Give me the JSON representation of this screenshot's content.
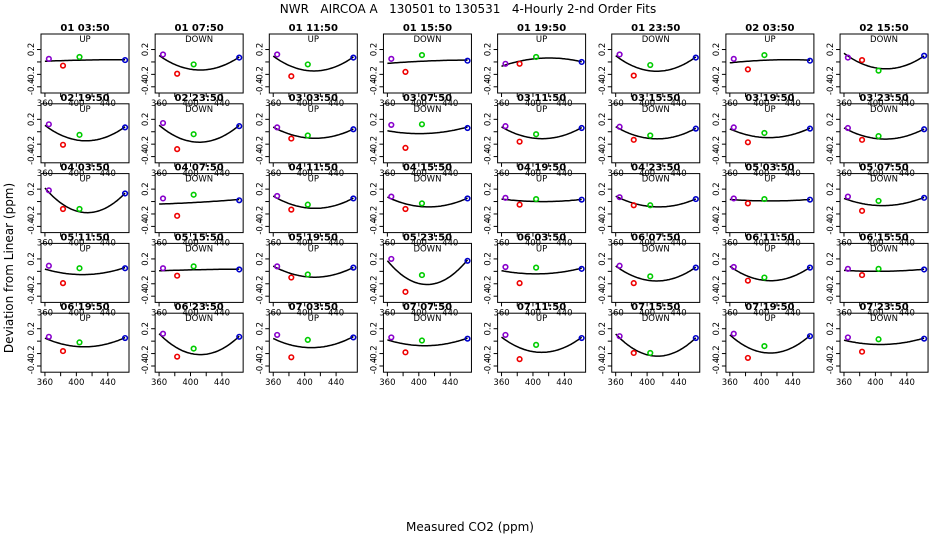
{
  "chart_data": {
    "type": "scatter",
    "title": "NWR   AIRCOA A   130501 to 130531   4-Hourly 2-nd Order Fits",
    "xlabel": "Measured CO2 (ppm)",
    "ylabel": "Deviation from Linear (ppm)",
    "xlim": [
      355,
      467
    ],
    "ylim": [
      -0.5,
      0.45
    ],
    "xticks": [
      "360",
      "400",
      "440"
    ],
    "xticks_minor": [
      "380",
      "420"
    ],
    "yticks": [
      "0.2",
      "-0.2",
      "-0.4"
    ],
    "yticks_minor": [
      "0.0"
    ],
    "point_x": [
      365,
      383,
      404,
      462
    ],
    "point_colors": [
      "#8800cc",
      "#ee0000",
      "#00cc00",
      "#0000cc"
    ],
    "panels": [
      {
        "label": "01 03:50",
        "dir": "UP",
        "y": [
          0.05,
          -0.06,
          0.08,
          0.03
        ]
      },
      {
        "label": "01 07:50",
        "dir": "DOWN",
        "y": [
          0.12,
          -0.19,
          -0.04,
          0.07
        ]
      },
      {
        "label": "01 11:50",
        "dir": "UP",
        "y": [
          0.12,
          -0.23,
          -0.04,
          0.07
        ]
      },
      {
        "label": "01 15:50",
        "dir": "DOWN",
        "y": [
          0.05,
          -0.16,
          0.11,
          0.02
        ]
      },
      {
        "label": "01 19:50",
        "dir": "UP",
        "y": [
          -0.03,
          -0.03,
          0.08,
          0.0
        ]
      },
      {
        "label": "01 23:50",
        "dir": "DOWN",
        "y": [
          0.12,
          -0.22,
          -0.05,
          0.07
        ]
      },
      {
        "label": "02 03:50",
        "dir": "UP",
        "y": [
          0.05,
          -0.12,
          0.11,
          0.02
        ]
      },
      {
        "label": "02 15:50",
        "dir": "DOWN",
        "y": [
          0.07,
          0.03,
          -0.14,
          0.1
        ]
      },
      {
        "label": "02 19:50",
        "dir": "UP",
        "y": [
          0.12,
          -0.21,
          -0.05,
          0.07
        ]
      },
      {
        "label": "02 23:50",
        "dir": "DOWN",
        "y": [
          0.14,
          -0.28,
          -0.04,
          0.09
        ]
      },
      {
        "label": "03 03:50",
        "dir": "UP",
        "y": [
          0.07,
          -0.11,
          -0.06,
          0.04
        ]
      },
      {
        "label": "03 07:50",
        "dir": "DOWN",
        "y": [
          0.11,
          -0.26,
          0.12,
          0.06
        ]
      },
      {
        "label": "03 11:50",
        "dir": "UP",
        "y": [
          0.09,
          -0.16,
          -0.04,
          0.06
        ]
      },
      {
        "label": "03 15:50",
        "dir": "DOWN",
        "y": [
          0.08,
          -0.13,
          -0.06,
          0.05
        ]
      },
      {
        "label": "03 19:50",
        "dir": "UP",
        "y": [
          0.07,
          -0.17,
          -0.02,
          0.05
        ]
      },
      {
        "label": "03 23:50",
        "dir": "DOWN",
        "y": [
          0.06,
          -0.13,
          -0.07,
          0.04
        ]
      },
      {
        "label": "04 03:50",
        "dir": "UP",
        "y": [
          0.18,
          -0.12,
          -0.12,
          0.13
        ]
      },
      {
        "label": "04 07:50",
        "dir": "DOWN",
        "y": [
          0.05,
          -0.23,
          0.11,
          0.02
        ]
      },
      {
        "label": "04 11:50",
        "dir": "UP",
        "y": [
          0.09,
          -0.13,
          -0.05,
          0.05
        ]
      },
      {
        "label": "04 15:50",
        "dir": "DOWN",
        "y": [
          0.08,
          -0.12,
          -0.03,
          0.05
        ]
      },
      {
        "label": "04 19:50",
        "dir": "UP",
        "y": [
          0.06,
          -0.05,
          0.04,
          0.03
        ]
      },
      {
        "label": "04 23:50",
        "dir": "DOWN",
        "y": [
          0.07,
          -0.06,
          -0.06,
          0.04
        ]
      },
      {
        "label": "05 03:50",
        "dir": "UP",
        "y": [
          0.05,
          -0.03,
          0.04,
          0.03
        ]
      },
      {
        "label": "05 07:50",
        "dir": "DOWN",
        "y": [
          0.08,
          -0.15,
          0.01,
          0.06
        ]
      },
      {
        "label": "05 11:50",
        "dir": "UP",
        "y": [
          0.09,
          -0.19,
          0.05,
          0.05
        ]
      },
      {
        "label": "05 15:50",
        "dir": "DOWN",
        "y": [
          0.05,
          -0.07,
          0.08,
          0.03
        ]
      },
      {
        "label": "05 19:50",
        "dir": "UP",
        "y": [
          0.08,
          -0.1,
          -0.05,
          0.06
        ]
      },
      {
        "label": "05 23:50",
        "dir": "DOWN",
        "y": [
          0.2,
          -0.33,
          -0.06,
          0.17
        ]
      },
      {
        "label": "06 03:50",
        "dir": "UP",
        "y": [
          0.07,
          -0.19,
          0.06,
          0.04
        ]
      },
      {
        "label": "06 07:50",
        "dir": "DOWN",
        "y": [
          0.09,
          -0.19,
          -0.08,
          0.06
        ]
      },
      {
        "label": "06 11:50",
        "dir": "UP",
        "y": [
          0.07,
          -0.15,
          -0.1,
          0.06
        ]
      },
      {
        "label": "06 15:50",
        "dir": "DOWN",
        "y": [
          0.04,
          -0.06,
          0.04,
          0.03
        ]
      },
      {
        "label": "06 19:50",
        "dir": "UP",
        "y": [
          0.07,
          -0.16,
          -0.02,
          0.05
        ]
      },
      {
        "label": "06 23:50",
        "dir": "DOWN",
        "y": [
          0.12,
          -0.25,
          -0.12,
          0.07
        ]
      },
      {
        "label": "07 03:50",
        "dir": "UP",
        "y": [
          0.1,
          -0.26,
          0.02,
          0.06
        ]
      },
      {
        "label": "07 07:50",
        "dir": "DOWN",
        "y": [
          0.06,
          -0.18,
          0.01,
          0.04
        ]
      },
      {
        "label": "07 11:50",
        "dir": "UP",
        "y": [
          0.1,
          -0.29,
          -0.06,
          0.05
        ]
      },
      {
        "label": "07 15:50",
        "dir": "DOWN",
        "y": [
          0.08,
          -0.19,
          -0.19,
          0.05
        ]
      },
      {
        "label": "07 19:50",
        "dir": "UP",
        "y": [
          0.12,
          -0.27,
          -0.08,
          0.08
        ]
      },
      {
        "label": "07 23:50",
        "dir": "DOWN",
        "y": [
          0.06,
          -0.17,
          0.03,
          0.04
        ]
      }
    ]
  }
}
